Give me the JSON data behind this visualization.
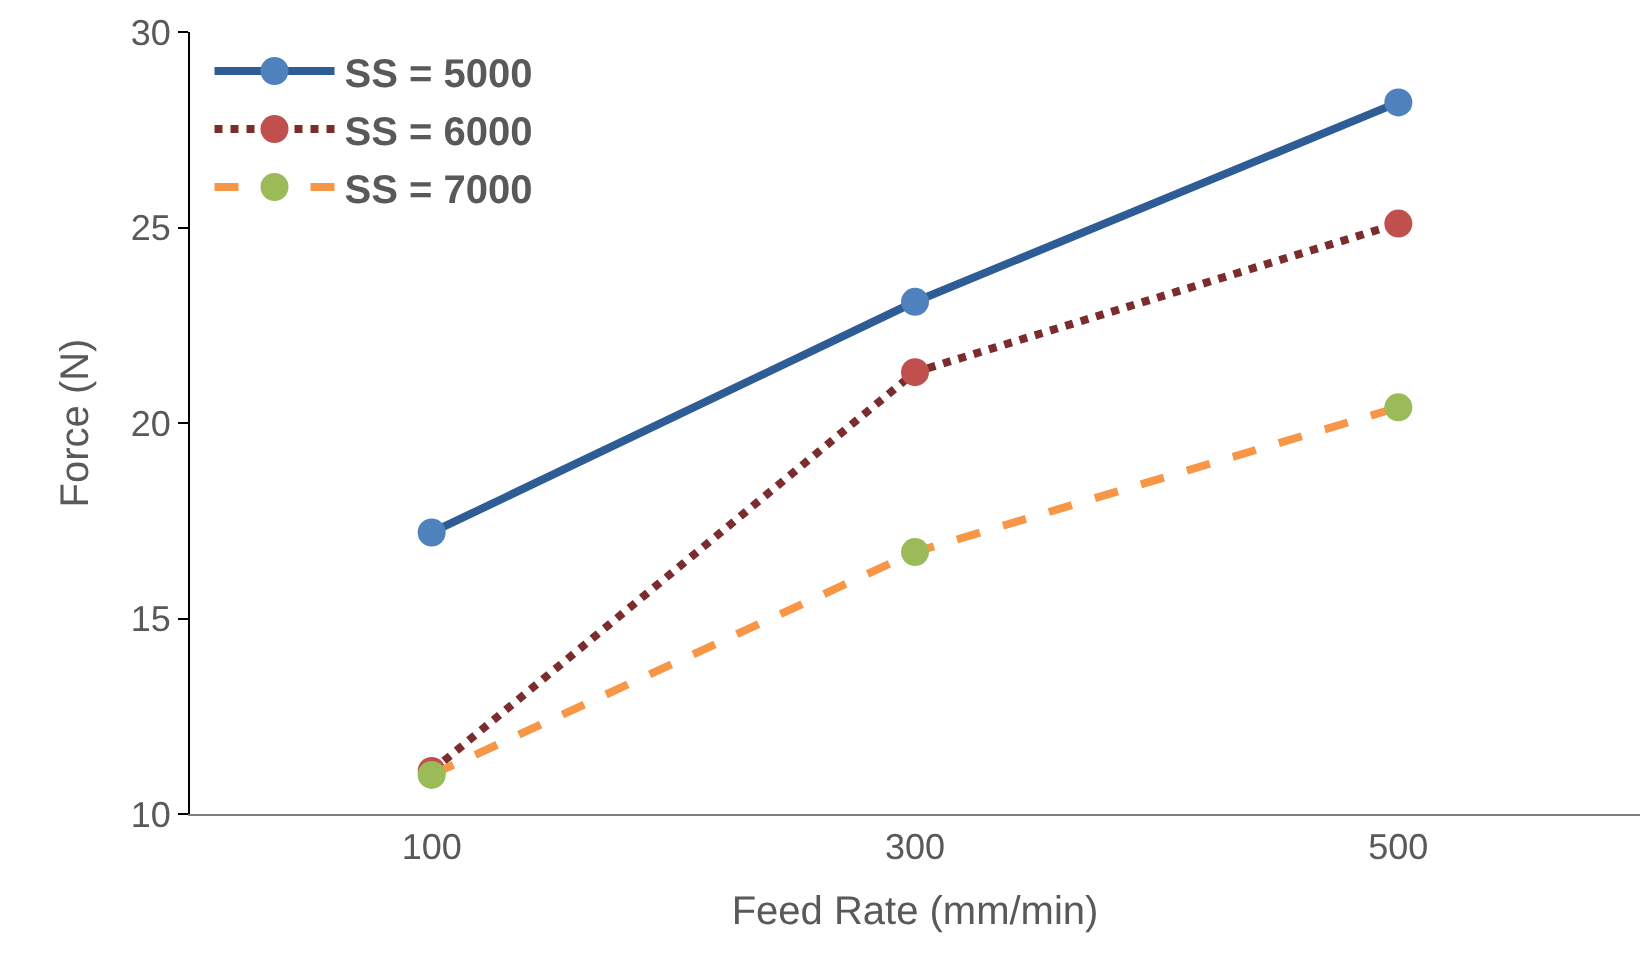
{
  "chart_data": {
    "type": "line",
    "xlabel": "Feed Rate (mm/min)",
    "ylabel": "Force (N)",
    "categories": [
      "100",
      "300",
      "500"
    ],
    "ylim": [
      10,
      30
    ],
    "yticks": [
      10,
      15,
      20,
      25,
      30
    ],
    "grid": false,
    "legend": "top left",
    "marker": "circle",
    "series": [
      {
        "name": "SS = 5000",
        "color": "#2e5d95",
        "colors": [
          "#4f81bd",
          "#4f81bd",
          "#4f81bd"
        ],
        "line_style": "solid",
        "values": [
          17.2,
          23.1,
          28.2
        ]
      },
      {
        "name": "SS = 6000",
        "color": "#7b2c2c",
        "colors": [
          "#c0504d",
          "#c0504d",
          "#c0504d"
        ],
        "line_style": "dotted",
        "values": [
          11.1,
          21.3,
          25.1
        ]
      },
      {
        "name": "SS = 7000",
        "color": "#f79646",
        "colors": [
          "#9bbb59",
          "#9bbb59",
          "#9bbb59"
        ],
        "line_style": "dashed",
        "values": [
          11.0,
          16.7,
          20.4
        ]
      }
    ]
  }
}
